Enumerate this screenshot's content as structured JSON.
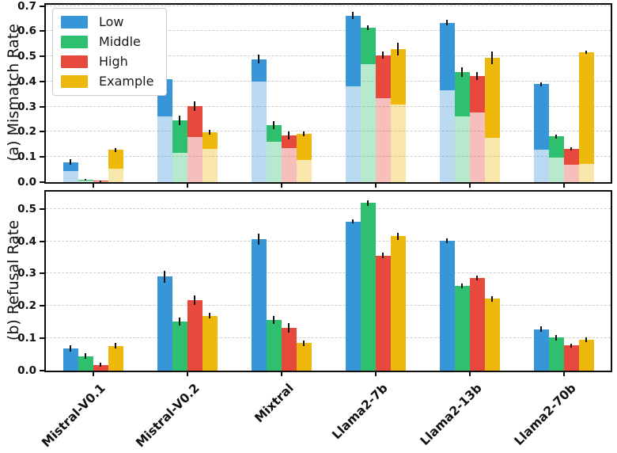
{
  "figure": {
    "background": "#ffffff",
    "spine_color": "#0d0d0d",
    "grid_color": "#cdcdcd",
    "light_segment_alpha": 0.35
  },
  "legend": {
    "position": "upper left"
  },
  "chart_data": [
    {
      "id": "a",
      "type": "bar",
      "ylabel": "(a) Mismatch Rate",
      "ylim": [
        0,
        0.705
      ],
      "yticks": [
        0.0,
        0.1,
        0.2,
        0.3,
        0.4,
        0.5,
        0.6,
        0.7
      ],
      "grid": true,
      "bar_style": "light-base-with-solid-top",
      "categories": [
        "Mistral-V0.1",
        "Mistral-V0.2",
        "Mixtral",
        "Llama2-7b",
        "Llama2-13b",
        "Llama2-70b"
      ],
      "series": [
        {
          "name": "Low",
          "color": "#3796d8",
          "values": [
            0.08,
            0.41,
            0.489,
            0.662,
            0.634,
            0.39
          ],
          "solid_from": [
            0.045,
            0.26,
            0.4,
            0.382,
            0.365,
            0.128
          ],
          "err": [
            0.012,
            0.03,
            0.018,
            0.015,
            0.01,
            0.008
          ]
        },
        {
          "name": "Middle",
          "color": "#2ec06f",
          "values": [
            0.01,
            0.246,
            0.226,
            0.613,
            0.437,
            0.182
          ],
          "solid_from": [
            0.005,
            0.118,
            0.162,
            0.47,
            0.26,
            0.097
          ],
          "err": [
            0.004,
            0.02,
            0.015,
            0.01,
            0.018,
            0.008
          ]
        },
        {
          "name": "High",
          "color": "#e8493d",
          "values": [
            0.004,
            0.302,
            0.186,
            0.505,
            0.422,
            0.131
          ],
          "solid_from": [
            0.002,
            0.181,
            0.136,
            0.333,
            0.278,
            0.07
          ],
          "err": [
            0.003,
            0.018,
            0.015,
            0.013,
            0.015,
            0.006
          ]
        },
        {
          "name": "Example",
          "color": "#eeb80d",
          "values": [
            0.128,
            0.199,
            0.192,
            0.529,
            0.495,
            0.516
          ],
          "solid_from": [
            0.055,
            0.131,
            0.087,
            0.309,
            0.175,
            0.073
          ],
          "err": [
            0.008,
            0.01,
            0.01,
            0.025,
            0.025,
            0.006
          ]
        }
      ]
    },
    {
      "id": "b",
      "type": "bar",
      "ylabel": "(b) Refusal Rate",
      "ylim": [
        0,
        0.553
      ],
      "yticks": [
        0.0,
        0.1,
        0.2,
        0.3,
        0.4,
        0.5
      ],
      "grid": true,
      "bar_style": "solid",
      "categories": [
        "Mistral-V0.1",
        "Mistral-V0.2",
        "Mixtral",
        "Llama2-7b",
        "Llama2-13b",
        "Llama2-70b"
      ],
      "series": [
        {
          "name": "Low",
          "color": "#3796d8",
          "values": [
            0.069,
            0.29,
            0.406,
            0.461,
            0.401,
            0.128
          ],
          "err": [
            0.01,
            0.018,
            0.018,
            0.006,
            0.008,
            0.008
          ]
        },
        {
          "name": "Middle",
          "color": "#2ec06f",
          "values": [
            0.045,
            0.152,
            0.157,
            0.518,
            0.262,
            0.102
          ],
          "err": [
            0.008,
            0.012,
            0.012,
            0.008,
            0.008,
            0.008
          ]
        },
        {
          "name": "High",
          "color": "#e8493d",
          "values": [
            0.018,
            0.218,
            0.133,
            0.356,
            0.286,
            0.078
          ],
          "err": [
            0.006,
            0.015,
            0.015,
            0.008,
            0.008,
            0.006
          ]
        },
        {
          "name": "Example",
          "color": "#eeb80d",
          "values": [
            0.077,
            0.17,
            0.085,
            0.415,
            0.222,
            0.095
          ],
          "err": [
            0.008,
            0.008,
            0.008,
            0.01,
            0.008,
            0.008
          ]
        }
      ]
    }
  ]
}
